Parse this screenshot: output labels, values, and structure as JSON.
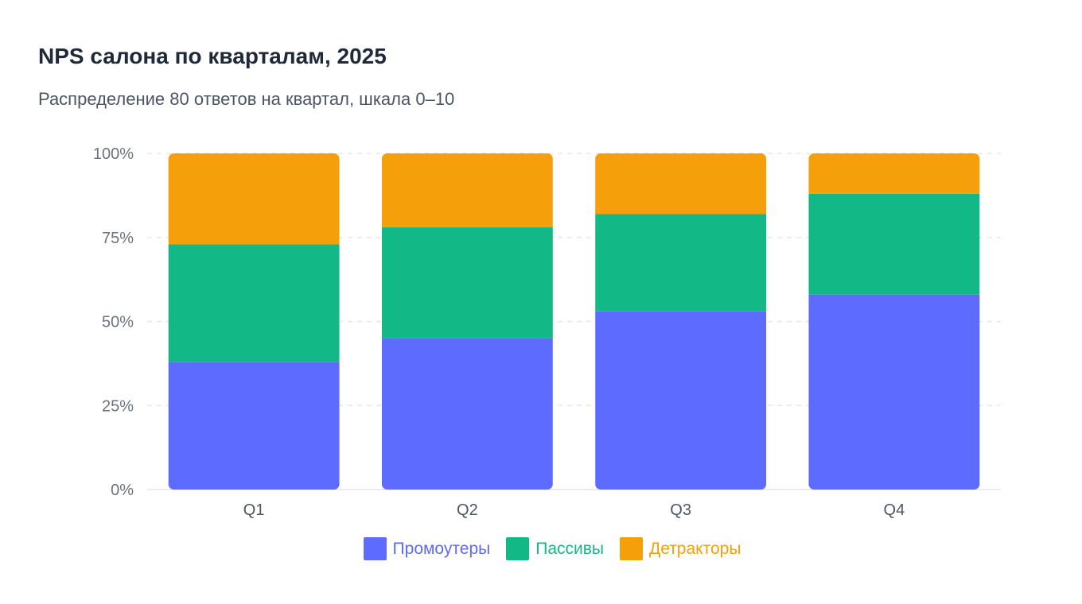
{
  "title": "NPS салона по кварталам, 2025",
  "subtitle": "Распределение 80 ответов на квартал, шкала 0–10",
  "colors": {
    "promoters": "#5d6bff",
    "passives": "#12b886",
    "detractors": "#f59f0a",
    "grid": "#e5e7eb",
    "axis": "#e5e7eb"
  },
  "chart_data": {
    "type": "bar",
    "stacked": true,
    "categories": [
      "Q1",
      "Q2",
      "Q3",
      "Q4"
    ],
    "series": [
      {
        "name": "Промоутеры",
        "color": "#5d6bff",
        "values": [
          38,
          45,
          53,
          58
        ]
      },
      {
        "name": "Пассивы",
        "color": "#12b886",
        "values": [
          35,
          33,
          29,
          30
        ]
      },
      {
        "name": "Детракторы",
        "color": "#f59f0a",
        "values": [
          27,
          22,
          18,
          12
        ]
      }
    ],
    "ylim": [
      0,
      100
    ],
    "yticks": [
      0,
      25,
      50,
      75,
      100
    ],
    "ytick_labels": [
      "0%",
      "25%",
      "50%",
      "75%",
      "100%"
    ],
    "grid": true,
    "legend": "bottom"
  },
  "legend": [
    {
      "label": "Промоутеры",
      "color": "#5d6bff"
    },
    {
      "label": "Пассивы",
      "color": "#12b886"
    },
    {
      "label": "Детракторы",
      "color": "#f59f0a"
    }
  ]
}
